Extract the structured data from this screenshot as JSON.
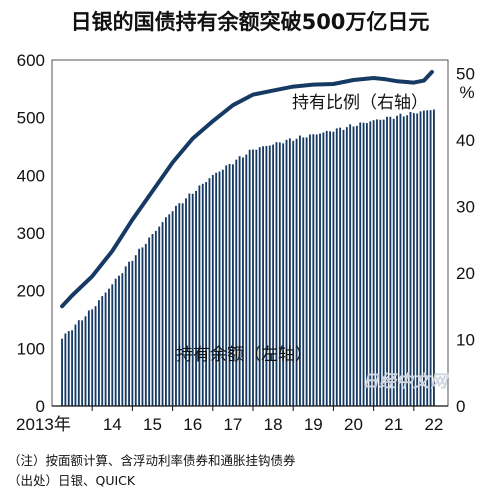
{
  "title": "日银的国债持有余额突破500万亿日元",
  "notes": {
    "note1": "（注）按面额计算、含浮动利率债券和通胀挂钩债券",
    "note2": "（出处）日银、QUICK"
  },
  "watermark": "日经中文网",
  "chart_data": {
    "type": "bar+line",
    "x_tick_labels": [
      "2013年",
      "14",
      "15",
      "16",
      "17",
      "18",
      "19",
      "20",
      "21",
      "22"
    ],
    "left_axis": {
      "ticks": [
        "0",
        "100",
        "200",
        "300",
        "400",
        "500",
        "600"
      ],
      "ylim": [
        0,
        600
      ]
    },
    "right_axis": {
      "ticks": [
        "0",
        "10",
        "20",
        "30",
        "40",
        "50"
      ],
      "unit": "%",
      "ylim": [
        0,
        52
      ]
    },
    "bar_series": {
      "name": "持有余额（左轴）",
      "anchors_x": [
        2013.25,
        2014.0,
        2015.0,
        2016.0,
        2017.0,
        2018.0,
        2019.0,
        2020.0,
        2021.0,
        2022.0,
        2022.5
      ],
      "anchors_y": [
        118,
        168,
        255,
        340,
        400,
        445,
        463,
        478,
        495,
        508,
        515
      ]
    },
    "line_series": {
      "name": "持有比例（右轴）",
      "x": [
        2013.25,
        2013.5,
        2014.0,
        2014.5,
        2015.0,
        2015.5,
        2016.0,
        2016.5,
        2017.0,
        2017.5,
        2018.0,
        2018.5,
        2019.0,
        2019.5,
        2020.0,
        2020.5,
        2021.0,
        2021.3,
        2021.6,
        2022.0,
        2022.25,
        2022.45
      ],
      "y": [
        15.0,
        16.6,
        19.5,
        23.3,
        28.0,
        32.3,
        36.6,
        40.2,
        42.8,
        45.2,
        46.8,
        47.4,
        48.0,
        48.3,
        48.4,
        49.0,
        49.3,
        49.1,
        48.8,
        48.6,
        48.9,
        50.2
      ]
    },
    "grid": false,
    "colors": {
      "bar": "#163a63",
      "line": "#163a63",
      "plot_background": "#ffffff",
      "watermark": "#cfd6e0"
    }
  }
}
